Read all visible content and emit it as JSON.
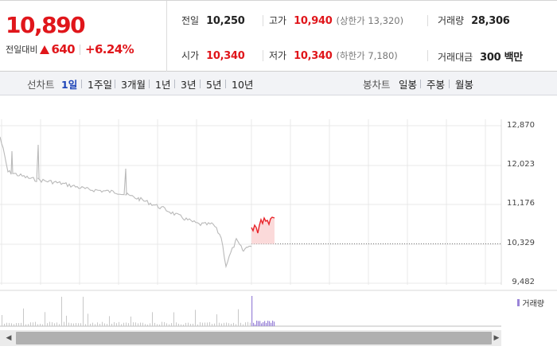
{
  "quote": {
    "price": "10,890",
    "change_label": "전일대비",
    "change_direction_icon": "up-triangle-icon",
    "change_value": "640",
    "change_pct": "+6.24%",
    "prev_close_label": "전일",
    "prev_close": "10,250",
    "high_label": "고가",
    "high": "10,940",
    "upper_limit": "(상한가 13,320)",
    "volume_label": "거래량",
    "volume": "28,306",
    "open_label": "시가",
    "open": "10,340",
    "low_label": "저가",
    "low": "10,340",
    "lower_limit": "(하한가 7,180)",
    "amount_label": "거래대금",
    "amount": "300 백만"
  },
  "toolbar": {
    "line_chart_label": "선차트",
    "line_periods": [
      "1일",
      "1주일",
      "3개월",
      "1년",
      "3년",
      "5년",
      "10년"
    ],
    "active_period": "1일",
    "candle_chart_label": "봉차트",
    "candle_periods": [
      "일봉",
      "주봉",
      "월봉"
    ]
  },
  "chart": {
    "y_ticks": [
      "12,870",
      "12,023",
      "11,176",
      "10,329",
      "9,482"
    ],
    "y_min": 9482,
    "y_max": 12870,
    "reference_line": 10329,
    "volume_legend": "거래량",
    "colors": {
      "previous_day_line": "#b9b9b9",
      "today_line": "#e8242a",
      "today_fill": "#fbdada",
      "volume_previous": "#c8c8c8",
      "volume_today": "#9a84d8",
      "grid": "#e9e9e9"
    }
  },
  "scrollbar": {
    "left_icon": "scroll-left-arrow-icon",
    "right_icon": "scroll-right-arrow-icon"
  }
}
